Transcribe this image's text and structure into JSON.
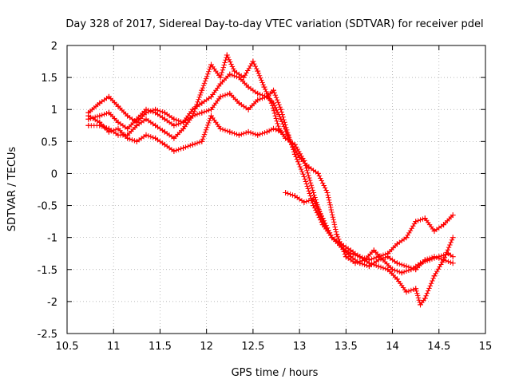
{
  "chart_data": {
    "type": "scatter",
    "title": "Day 328 of 2017, Sidereal Day-to-day VTEC variation (SDTVAR) for receiver pdel",
    "xlabel": "GPS time / hours",
    "ylabel": "SDTVAR / TECUs",
    "xlim": [
      10.5,
      15
    ],
    "ylim": [
      -2.5,
      2
    ],
    "xticks": [
      "10.5",
      "11",
      "11.5",
      "12",
      "12.5",
      "13",
      "13.5",
      "14",
      "14.5",
      "15"
    ],
    "yticks": [
      "2",
      "1.5",
      "1",
      "0.5",
      "0",
      "-0.5",
      "-1",
      "-1.5",
      "-2",
      "-2.5"
    ],
    "grid": true,
    "marker": "plus",
    "color": "#ff0000",
    "series": [
      {
        "name": "trace-1",
        "x": [
          10.73,
          10.85,
          10.95,
          11.05,
          11.15,
          11.25,
          11.35,
          11.45,
          11.55,
          11.65,
          11.75,
          11.85,
          11.95,
          12.05,
          12.15,
          12.22,
          12.3,
          12.4,
          12.5,
          12.55,
          12.62,
          12.7,
          12.78,
          12.85,
          12.95,
          13.05,
          13.15,
          13.25,
          13.35,
          13.45,
          13.55,
          13.65,
          13.75,
          13.85,
          13.95,
          14.05,
          14.15,
          14.25,
          14.35,
          14.45,
          14.55,
          14.65
        ],
        "y": [
          0.95,
          1.1,
          1.2,
          1.05,
          0.9,
          0.8,
          0.95,
          1.0,
          0.95,
          0.85,
          0.8,
          0.9,
          1.3,
          1.7,
          1.5,
          1.85,
          1.6,
          1.5,
          1.75,
          1.6,
          1.35,
          1.1,
          0.7,
          0.55,
          0.45,
          0.2,
          -0.3,
          -0.75,
          -1.0,
          -1.1,
          -1.2,
          -1.3,
          -1.35,
          -1.3,
          -1.25,
          -1.1,
          -1.0,
          -0.75,
          -0.7,
          -0.9,
          -0.8,
          -0.65
        ]
      },
      {
        "name": "trace-2",
        "x": [
          10.73,
          10.85,
          10.95,
          11.05,
          11.15,
          11.25,
          11.35,
          11.45,
          11.55,
          11.65,
          11.75,
          11.85,
          11.95,
          12.05,
          12.15,
          12.25,
          12.35,
          12.45,
          12.55,
          12.65,
          12.72,
          12.8,
          12.88,
          12.95,
          13.05,
          13.15,
          13.25,
          13.35,
          13.45,
          13.55,
          13.65,
          13.75,
          13.85,
          13.95,
          14.05,
          14.15,
          14.25,
          14.35,
          14.45,
          14.55,
          14.65
        ],
        "y": [
          0.85,
          0.9,
          0.95,
          0.8,
          0.7,
          0.85,
          1.0,
          0.95,
          0.85,
          0.75,
          0.8,
          1.0,
          1.1,
          1.2,
          1.4,
          1.55,
          1.5,
          1.35,
          1.25,
          1.2,
          1.3,
          1.0,
          0.6,
          0.3,
          -0.05,
          -0.5,
          -0.8,
          -1.0,
          -1.15,
          -1.3,
          -1.4,
          -1.45,
          -1.35,
          -1.3,
          -1.4,
          -1.45,
          -1.5,
          -1.35,
          -1.3,
          -1.35,
          -1.4
        ]
      },
      {
        "name": "trace-3",
        "x": [
          10.73,
          10.85,
          10.95,
          11.05,
          11.15,
          11.25,
          11.35,
          11.45,
          11.55,
          11.65,
          11.75,
          11.85,
          11.95,
          12.05,
          12.15,
          12.25,
          12.35,
          12.45,
          12.55,
          12.65,
          12.72,
          12.8,
          12.9,
          13.0,
          13.1,
          13.2,
          13.3,
          13.4,
          13.5,
          13.6,
          13.7,
          13.8,
          13.9,
          14.0,
          14.1,
          14.2,
          14.3,
          14.4,
          14.5,
          14.6,
          14.65
        ],
        "y": [
          0.75,
          0.75,
          0.7,
          0.6,
          0.6,
          0.75,
          0.85,
          0.75,
          0.65,
          0.55,
          0.7,
          0.9,
          0.95,
          1.0,
          1.2,
          1.25,
          1.1,
          1.0,
          1.15,
          1.2,
          1.1,
          0.85,
          0.5,
          0.25,
          0.1,
          0.0,
          -0.3,
          -0.95,
          -1.3,
          -1.4,
          -1.35,
          -1.2,
          -1.35,
          -1.5,
          -1.55,
          -1.5,
          -1.4,
          -1.35,
          -1.3,
          -1.25,
          -1.3
        ]
      },
      {
        "name": "trace-4",
        "x": [
          10.73,
          10.85,
          10.95,
          11.05,
          11.15,
          11.25,
          11.35,
          11.45,
          11.55,
          11.65,
          11.75,
          11.85,
          11.95,
          12.05,
          12.15,
          12.25,
          12.35,
          12.45,
          12.55,
          12.65,
          12.72,
          12.8
        ],
        "y": [
          0.9,
          0.8,
          0.65,
          0.7,
          0.55,
          0.5,
          0.6,
          0.55,
          0.45,
          0.35,
          0.4,
          0.45,
          0.5,
          0.9,
          0.7,
          0.65,
          0.6,
          0.65,
          0.6,
          0.65,
          0.7,
          0.65
        ]
      },
      {
        "name": "trace-5",
        "x": [
          12.85,
          12.95,
          13.05,
          13.15,
          13.25,
          13.35,
          13.45,
          13.55,
          13.65,
          13.75,
          13.85,
          13.95,
          14.05,
          14.15,
          14.25,
          14.3,
          14.35,
          14.45,
          14.55,
          14.65
        ],
        "y": [
          -0.3,
          -0.35,
          -0.45,
          -0.4,
          -0.7,
          -1.0,
          -1.15,
          -1.25,
          -1.3,
          -1.4,
          -1.45,
          -1.5,
          -1.65,
          -1.85,
          -1.8,
          -2.05,
          -1.95,
          -1.6,
          -1.35,
          -1.0
        ]
      }
    ]
  }
}
